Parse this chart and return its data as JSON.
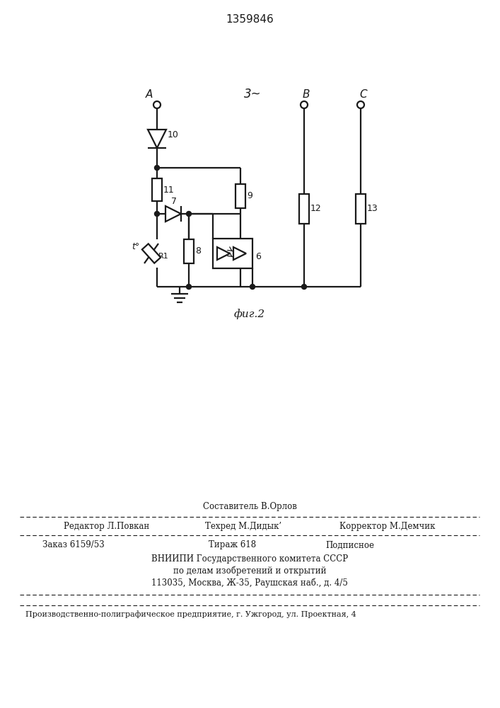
{
  "title": "1359846",
  "fig_label": "фиг.2",
  "phase_label": "3~",
  "bg_color": "#ffffff",
  "line_color": "#1a1a1a",
  "bottom_line1": "Составитель В.Орлов",
  "bottom_line2_left": "Редактор Л.Повкан",
  "bottom_line2_mid": "Техред М.Дидык’",
  "bottom_line2_right": "Корректор М.Демчик",
  "bottom_line3_left": "Заказ 6159/53",
  "bottom_line3_mid": "Тираж 618",
  "bottom_line3_right": "Подписное",
  "bottom_line4": "ВНИИПИ Государственного комитета СССР",
  "bottom_line5": "по делам изобретений и открытий",
  "bottom_line6": "113035, Москва, Ж-35, Раушская наб., д. 4/5",
  "bottom_line7": "Производственно-полиграфическое предприятие, г. Ужгород, ул. Проектная, 4"
}
